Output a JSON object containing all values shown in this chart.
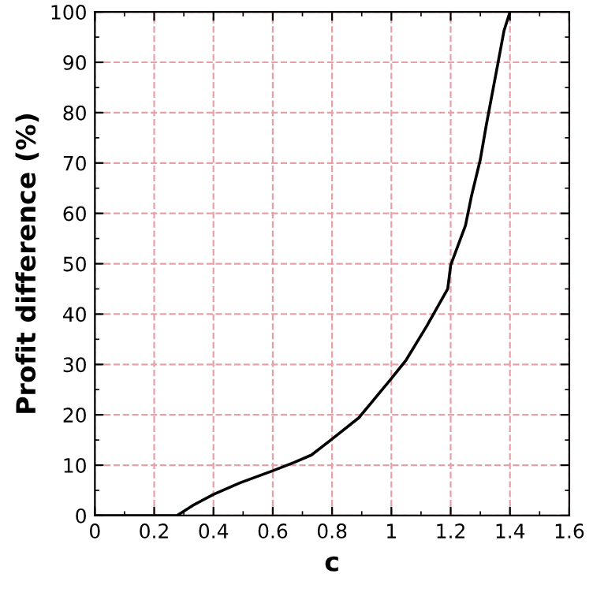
{
  "chart_data": {
    "type": "line",
    "xlabel": "c",
    "ylabel": "Profit difference (%)",
    "x": [
      0,
      0.1,
      0.2,
      0.277,
      0.33,
      0.4,
      0.49,
      0.6,
      0.67,
      0.73,
      0.8,
      0.89,
      1.0,
      1.05,
      1.12,
      1.19,
      1.2,
      1.25,
      1.27,
      1.3,
      1.32,
      1.36,
      1.38,
      1.4
    ],
    "series": [
      {
        "color": "#000000",
        "values": [
          0,
          0,
          0,
          0,
          2,
          4.2,
          6.5,
          8.9,
          10.5,
          12,
          15.2,
          19.4,
          27.2,
          30.9,
          37.7,
          45,
          49.7,
          57.6,
          63.4,
          70.7,
          77.5,
          90,
          96.3,
          100
        ]
      }
    ],
    "xlim": [
      0,
      1.6
    ],
    "ylim": [
      0,
      100
    ],
    "xticks": [
      0,
      0.2,
      0.4,
      0.6,
      0.8,
      1,
      1.2,
      1.4,
      1.6
    ],
    "yticks": [
      0,
      10,
      20,
      30,
      40,
      50,
      60,
      70,
      80,
      90,
      100
    ],
    "grid": true,
    "marker": "none",
    "line_style": "solid"
  }
}
